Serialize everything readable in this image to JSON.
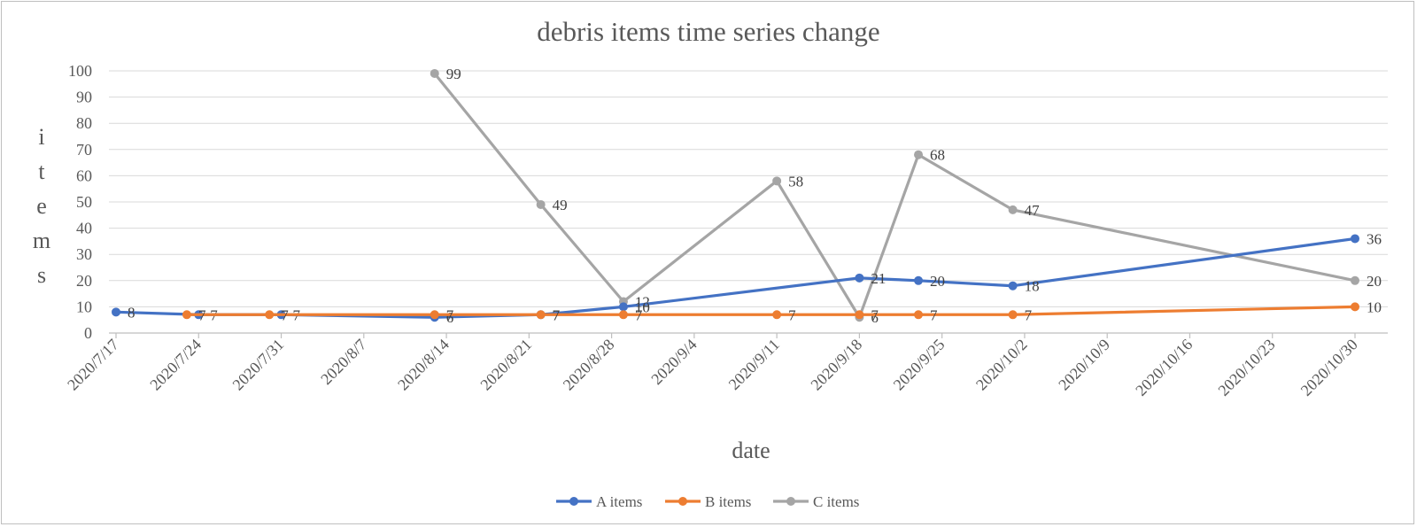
{
  "chart_data": {
    "type": "line",
    "title": "debris items time series change",
    "xlabel": "date",
    "ylabel": "items",
    "ylim": [
      0,
      100
    ],
    "y_ticks": [
      "0",
      "10",
      "20",
      "30",
      "40",
      "50",
      "60",
      "70",
      "80",
      "90",
      "100"
    ],
    "x_ticks": [
      "2020/7/17",
      "2020/7/24",
      "2020/7/31",
      "2020/8/7",
      "2020/8/14",
      "2020/8/21",
      "2020/8/28",
      "2020/9/4",
      "2020/9/11",
      "2020/9/18",
      "2020/9/25",
      "2020/10/2",
      "2020/10/9",
      "2020/10/16",
      "2020/10/23",
      "2020/10/30"
    ],
    "xlim": [
      "2020-07-17",
      "2020-10-30"
    ],
    "grid": true,
    "legend_position": "bottom",
    "series": [
      {
        "name": "A items",
        "color": "#4472c4",
        "points": [
          {
            "x": "2020-07-17",
            "y": 8
          },
          {
            "x": "2020-07-24",
            "y": 7
          },
          {
            "x": "2020-07-31",
            "y": 7
          },
          {
            "x": "2020-08-13",
            "y": 6
          },
          {
            "x": "2020-08-22",
            "y": 7
          },
          {
            "x": "2020-08-29",
            "y": 10
          },
          {
            "x": "2020-09-18",
            "y": 21
          },
          {
            "x": "2020-09-23",
            "y": 20
          },
          {
            "x": "2020-10-01",
            "y": 18
          },
          {
            "x": "2020-10-30",
            "y": 36
          }
        ]
      },
      {
        "name": "B items",
        "color": "#ed7d31",
        "points": [
          {
            "x": "2020-07-23",
            "y": 7
          },
          {
            "x": "2020-07-30",
            "y": 7
          },
          {
            "x": "2020-08-13",
            "y": 7
          },
          {
            "x": "2020-08-22",
            "y": 7
          },
          {
            "x": "2020-08-29",
            "y": 7
          },
          {
            "x": "2020-09-11",
            "y": 7
          },
          {
            "x": "2020-09-18",
            "y": 7
          },
          {
            "x": "2020-09-23",
            "y": 7
          },
          {
            "x": "2020-10-01",
            "y": 7
          },
          {
            "x": "2020-10-30",
            "y": 10
          }
        ]
      },
      {
        "name": "C items",
        "color": "#a5a5a5",
        "points": [
          {
            "x": "2020-08-13",
            "y": 99
          },
          {
            "x": "2020-08-22",
            "y": 49
          },
          {
            "x": "2020-08-29",
            "y": 12
          },
          {
            "x": "2020-09-11",
            "y": 58
          },
          {
            "x": "2020-09-18",
            "y": 6
          },
          {
            "x": "2020-09-23",
            "y": 68
          },
          {
            "x": "2020-10-01",
            "y": 47
          },
          {
            "x": "2020-10-30",
            "y": 20
          }
        ]
      }
    ]
  }
}
